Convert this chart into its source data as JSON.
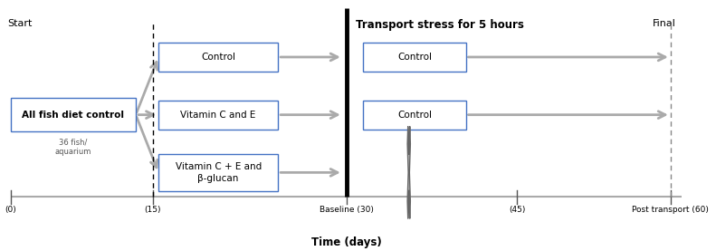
{
  "title": "Transport stress for 5 hours",
  "xlabel": "Time (days)",
  "start_label": "Start",
  "final_label": "Final",
  "tick_labels": [
    "(0)",
    "(15)",
    "Baseline (30)",
    "(45)",
    "Post transport (60)"
  ],
  "arrow_color": "#aaaaaa",
  "box_edge_color": "#4472C4",
  "background": "#ffffff",
  "mid_texts": [
    "Control",
    "Vitamin C and E",
    "Vitamin C + E and\nβ-glucan"
  ],
  "right_texts": [
    "Control",
    "Control"
  ],
  "left_box_text": "All fish diet control",
  "left_box_subtext": "36 fish/\naquarium"
}
